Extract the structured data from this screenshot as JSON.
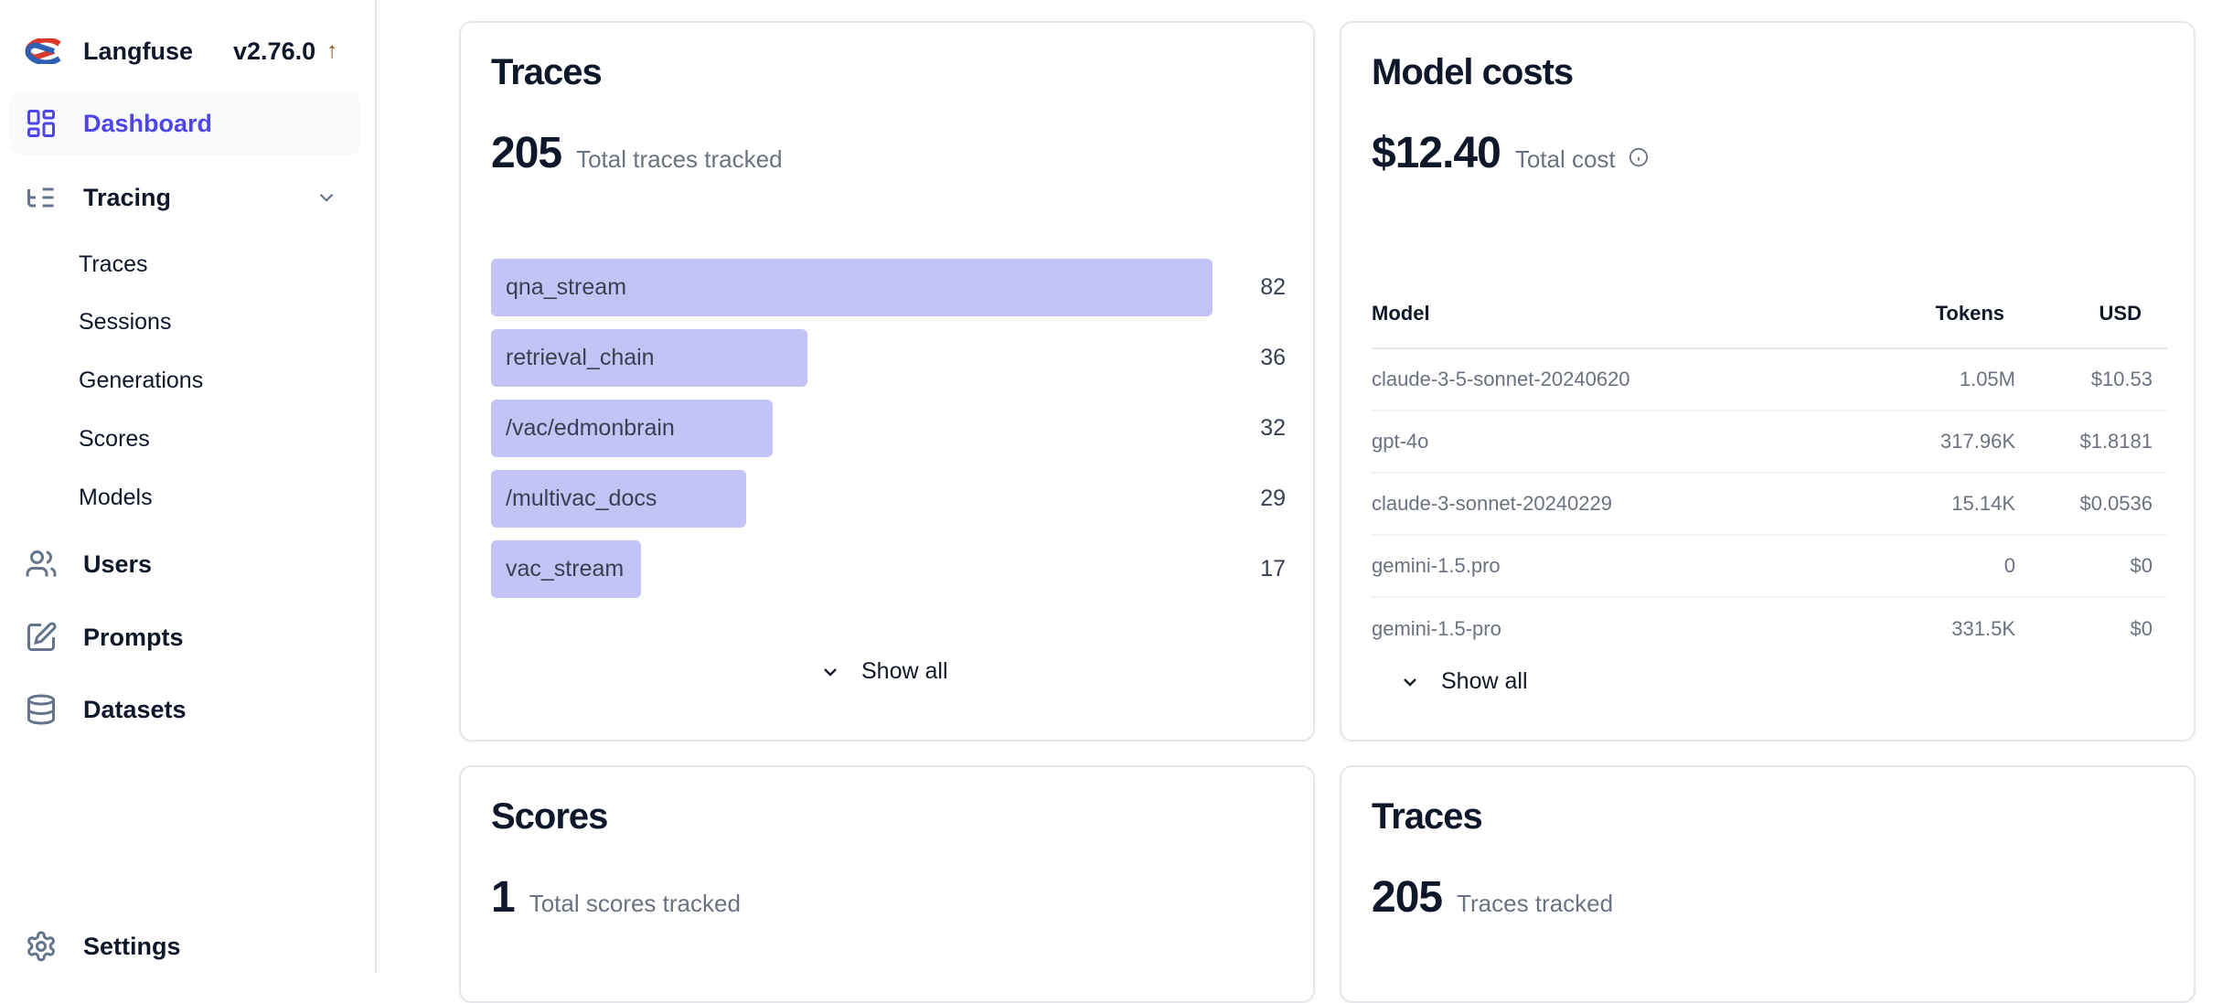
{
  "sidebar": {
    "brand": "Langfuse",
    "version": "v2.76.0",
    "items": [
      {
        "label": "Dashboard",
        "icon": "layout-dashboard-icon",
        "active": true
      },
      {
        "label": "Tracing",
        "icon": "list-tree-icon"
      },
      {
        "label": "Users",
        "icon": "users-icon"
      },
      {
        "label": "Prompts",
        "icon": "pencil-square-icon"
      },
      {
        "label": "Datasets",
        "icon": "database-icon"
      }
    ],
    "tracing_sub": [
      "Traces",
      "Sessions",
      "Generations",
      "Scores",
      "Models"
    ],
    "settings": "Settings"
  },
  "colors": {
    "accent": "#4f46e5",
    "bar": "#c3c4f5",
    "version_arrow": "#854d0e"
  },
  "traces_card": {
    "title": "Traces",
    "total": "205",
    "total_label": "Total traces tracked",
    "show_all": "Show all"
  },
  "chart_data": {
    "type": "bar",
    "orientation": "horizontal",
    "categories": [
      "qna_stream",
      "retrieval_chain",
      "/vac/edmonbrain",
      "/multivac_docs",
      "vac_stream"
    ],
    "values": [
      82,
      36,
      32,
      29,
      17
    ],
    "labels": [
      "82",
      "36",
      "32",
      "29",
      "17"
    ]
  },
  "costs_card": {
    "title": "Model costs",
    "total": "$12.40",
    "total_label": "Total cost",
    "show_all": "Show all",
    "columns": [
      "Model",
      "Tokens",
      "USD"
    ],
    "rows": [
      [
        "claude-3-5-sonnet-20240620",
        "1.05M",
        "$10.53"
      ],
      [
        "gpt-4o",
        "317.96K",
        "$1.8181"
      ],
      [
        "claude-3-sonnet-20240229",
        "15.14K",
        "$0.0536"
      ],
      [
        "gemini-1.5.pro",
        "0",
        "$0"
      ],
      [
        "gemini-1.5-pro",
        "331.5K",
        "$0"
      ]
    ]
  },
  "scores_card": {
    "title": "Scores",
    "total": "1",
    "total_label": "Total scores tracked"
  },
  "traces_card2": {
    "title": "Traces",
    "total": "205",
    "total_label": "Traces tracked"
  }
}
